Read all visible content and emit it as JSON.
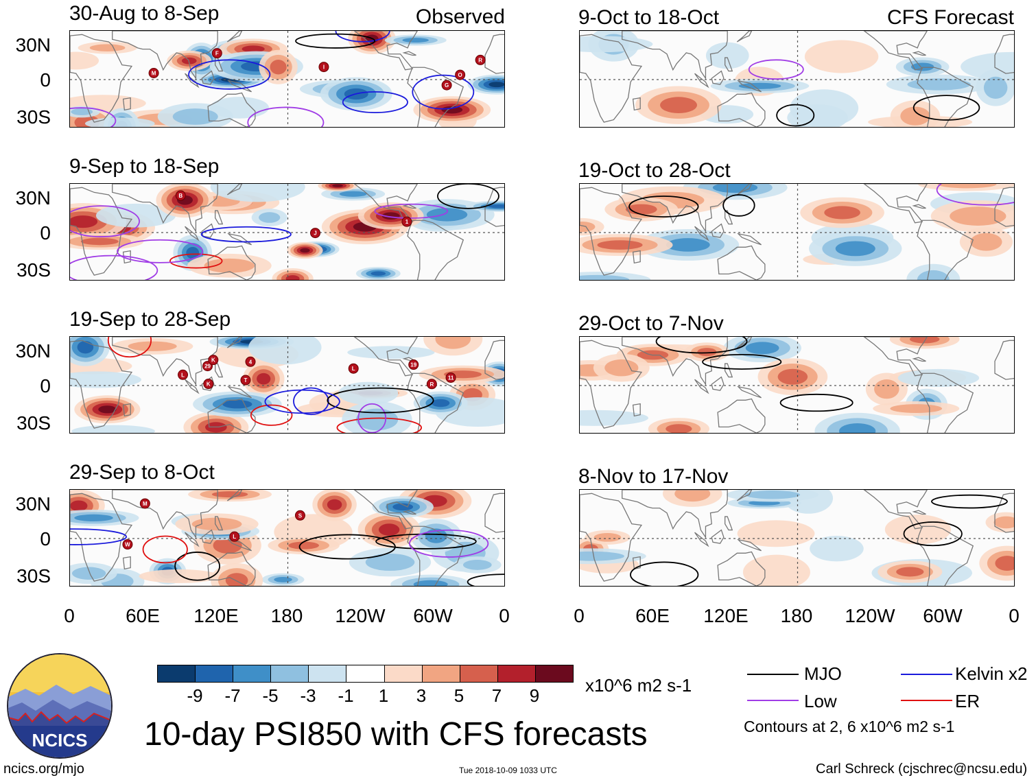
{
  "panels": {
    "observed_tag": "Observed",
    "forecast_tag": "CFS Forecast",
    "left": [
      {
        "title": "30-Aug to 8-Sep"
      },
      {
        "title": "9-Sep to 18-Sep"
      },
      {
        "title": "19-Sep to 28-Sep"
      },
      {
        "title": "29-Sep to 8-Oct"
      }
    ],
    "right": [
      {
        "title": "9-Oct to 18-Oct"
      },
      {
        "title": "19-Oct to 28-Oct"
      },
      {
        "title": "29-Oct to 7-Nov"
      },
      {
        "title": "8-Nov to 17-Nov"
      }
    ]
  },
  "lat_labels": [
    "30N",
    "0",
    "30S"
  ],
  "lon_labels": [
    "0",
    "60E",
    "120E",
    "180",
    "120W",
    "60W",
    "0"
  ],
  "colorbar": {
    "colors": [
      "#0b3b6e",
      "#1f64ad",
      "#3f8fc8",
      "#8fc0e0",
      "#cde3f0",
      "#ffffff",
      "#fbdac8",
      "#f1a582",
      "#d6604d",
      "#b3202c",
      "#6b0a1e"
    ],
    "labels": [
      "-9",
      "-7",
      "-5",
      "-3",
      "-1",
      "1",
      "3",
      "5",
      "7",
      "9"
    ],
    "units": "x10^6 m2 s-1"
  },
  "title": "10-day PSI850 with CFS forecasts",
  "legend": {
    "items": [
      {
        "label": "MJO",
        "color": "#000000"
      },
      {
        "label": "Kelvin x2",
        "color": "#1a1adc"
      },
      {
        "label": "Low",
        "color": "#a03ce6"
      },
      {
        "label": "ER",
        "color": "#e01010"
      }
    ],
    "contours_note": "Contours at 2, 6 x10^6 m2 s-1"
  },
  "logo_text": "NCICS",
  "footer": {
    "url": "ncics.org/mjo",
    "timestamp": "Tue 2018-10-09 1033 UTC",
    "author": "Carl Schreck (cjschrec@ncsu.edu)"
  },
  "storm_markers": {
    "left": [
      [
        "M",
        "F",
        "O",
        "G",
        "I",
        "R"
      ],
      [
        "B",
        "J",
        "1"
      ],
      [
        "29",
        "19",
        "L",
        "T",
        "K",
        "R",
        "11",
        "K",
        "4",
        "L"
      ],
      [
        "L",
        "W",
        "S",
        "M"
      ]
    ]
  }
}
